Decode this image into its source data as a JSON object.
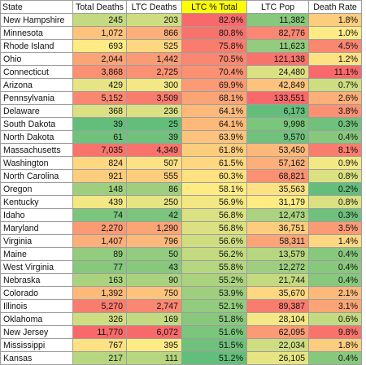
{
  "table": {
    "headers": [
      "State",
      "Total Deaths",
      "LTC Deaths",
      "LTC % Total",
      "LTC Pop",
      "Death Rate"
    ],
    "highlighted_header_color": "#ffff00",
    "scale_colors": {
      "low": "#63be7b",
      "mid": "#ffeb84",
      "high": "#f8696b"
    },
    "rows": [
      {
        "state": "New Hampshire",
        "total_deaths": "245",
        "ltc_deaths": "203",
        "ltc_pct": "82.9%",
        "ltc_pop": "11,382",
        "death_rate": "1.8%"
      },
      {
        "state": "Minnesota",
        "total_deaths": "1,072",
        "ltc_deaths": "866",
        "ltc_pct": "80.8%",
        "ltc_pop": "82,776",
        "death_rate": "1.0%"
      },
      {
        "state": "Rhode Island",
        "total_deaths": "693",
        "ltc_deaths": "525",
        "ltc_pct": "75.8%",
        "ltc_pop": "11,623",
        "death_rate": "4.5%"
      },
      {
        "state": "Ohio",
        "total_deaths": "2,044",
        "ltc_deaths": "1,442",
        "ltc_pct": "70.5%",
        "ltc_pop": "121,138",
        "death_rate": "1.2%"
      },
      {
        "state": "Connecticut",
        "total_deaths": "3,868",
        "ltc_deaths": "2,725",
        "ltc_pct": "70.4%",
        "ltc_pop": "24,480",
        "death_rate": "11.1%"
      },
      {
        "state": "Arizona",
        "total_deaths": "429",
        "ltc_deaths": "300",
        "ltc_pct": "69.9%",
        "ltc_pop": "42,849",
        "death_rate": "0.7%"
      },
      {
        "state": "Pennsylvania",
        "total_deaths": "5,152",
        "ltc_deaths": "3,509",
        "ltc_pct": "68.1%",
        "ltc_pop": "133,551",
        "death_rate": "2.6%"
      },
      {
        "state": "Delaware",
        "total_deaths": "368",
        "ltc_deaths": "236",
        "ltc_pct": "64.1%",
        "ltc_pop": "6,173",
        "death_rate": "3.8%"
      },
      {
        "state": "South Dakota",
        "total_deaths": "39",
        "ltc_deaths": "25",
        "ltc_pct": "64.1%",
        "ltc_pop": "9,998",
        "death_rate": "0.3%"
      },
      {
        "state": "North Dakota",
        "total_deaths": "61",
        "ltc_deaths": "39",
        "ltc_pct": "63.9%",
        "ltc_pop": "9,570",
        "death_rate": "0.4%"
      },
      {
        "state": "Massachusetts",
        "total_deaths": "7,035",
        "ltc_deaths": "4,349",
        "ltc_pct": "61.8%",
        "ltc_pop": "53,450",
        "death_rate": "8.1%"
      },
      {
        "state": "Washington",
        "total_deaths": "824",
        "ltc_deaths": "507",
        "ltc_pct": "61.5%",
        "ltc_pop": "57,162",
        "death_rate": "0.9%"
      },
      {
        "state": "North Carolina",
        "total_deaths": "921",
        "ltc_deaths": "555",
        "ltc_pct": "60.3%",
        "ltc_pop": "68,821",
        "death_rate": "0.8%"
      },
      {
        "state": "Oregon",
        "total_deaths": "148",
        "ltc_deaths": "86",
        "ltc_pct": "58.1%",
        "ltc_pop": "35,563",
        "death_rate": "0.2%"
      },
      {
        "state": "Kentucky",
        "total_deaths": "439",
        "ltc_deaths": "250",
        "ltc_pct": "56.9%",
        "ltc_pop": "31,179",
        "death_rate": "0.8%"
      },
      {
        "state": "Idaho",
        "total_deaths": "74",
        "ltc_deaths": "42",
        "ltc_pct": "56.8%",
        "ltc_pop": "12,473",
        "death_rate": "0.3%"
      },
      {
        "state": "Maryland",
        "total_deaths": "2,270",
        "ltc_deaths": "1,290",
        "ltc_pct": "56.8%",
        "ltc_pop": "36,751",
        "death_rate": "3.5%"
      },
      {
        "state": "Virginia",
        "total_deaths": "1,407",
        "ltc_deaths": "796",
        "ltc_pct": "56.6%",
        "ltc_pop": "58,311",
        "death_rate": "1.4%"
      },
      {
        "state": "Maine",
        "total_deaths": "89",
        "ltc_deaths": "50",
        "ltc_pct": "56.2%",
        "ltc_pop": "13,579",
        "death_rate": "0.4%"
      },
      {
        "state": "West Virginia",
        "total_deaths": "77",
        "ltc_deaths": "43",
        "ltc_pct": "55.8%",
        "ltc_pop": "12,272",
        "death_rate": "0.4%"
      },
      {
        "state": "Nebraska",
        "total_deaths": "163",
        "ltc_deaths": "90",
        "ltc_pct": "55.2%",
        "ltc_pop": "21,744",
        "death_rate": "0.4%"
      },
      {
        "state": "Colorado",
        "total_deaths": "1,392",
        "ltc_deaths": "750",
        "ltc_pct": "53.9%",
        "ltc_pop": "35,670",
        "death_rate": "2.1%"
      },
      {
        "state": "Illinois",
        "total_deaths": "5,270",
        "ltc_deaths": "2,747",
        "ltc_pct": "52.1%",
        "ltc_pop": "89,387",
        "death_rate": "3.1%"
      },
      {
        "state": "Oklahoma",
        "total_deaths": "326",
        "ltc_deaths": "169",
        "ltc_pct": "51.8%",
        "ltc_pop": "28,104",
        "death_rate": "0.6%"
      },
      {
        "state": "New Jersey",
        "total_deaths": "11,770",
        "ltc_deaths": "6,072",
        "ltc_pct": "51.6%",
        "ltc_pop": "62,095",
        "death_rate": "9.8%"
      },
      {
        "state": "Mississippi",
        "total_deaths": "767",
        "ltc_deaths": "395",
        "ltc_pct": "51.5%",
        "ltc_pop": "22,034",
        "death_rate": "1.8%"
      },
      {
        "state": "Kansas",
        "total_deaths": "217",
        "ltc_deaths": "111",
        "ltc_pct": "51.2%",
        "ltc_pop": "26,105",
        "death_rate": "0.4%"
      }
    ]
  }
}
